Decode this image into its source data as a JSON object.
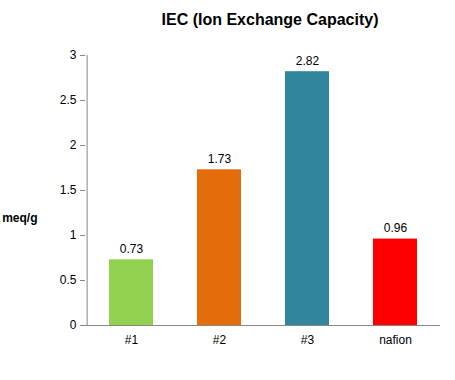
{
  "chart_data": {
    "type": "bar",
    "title": "IEC (Ion Exchange Capacity)",
    "y_label": "meq/g",
    "categories": [
      "#1",
      "#2",
      "#3",
      "nafion"
    ],
    "values": [
      0.73,
      1.73,
      2.82,
      0.96
    ],
    "colors": [
      "#92d050",
      "#e46c0a",
      "#31859c",
      "#ff0000"
    ],
    "ylim": [
      0,
      3
    ],
    "yticks": [
      0,
      0.5,
      1,
      1.5,
      2,
      2.5,
      3
    ],
    "grid": false,
    "data_labels": true
  }
}
